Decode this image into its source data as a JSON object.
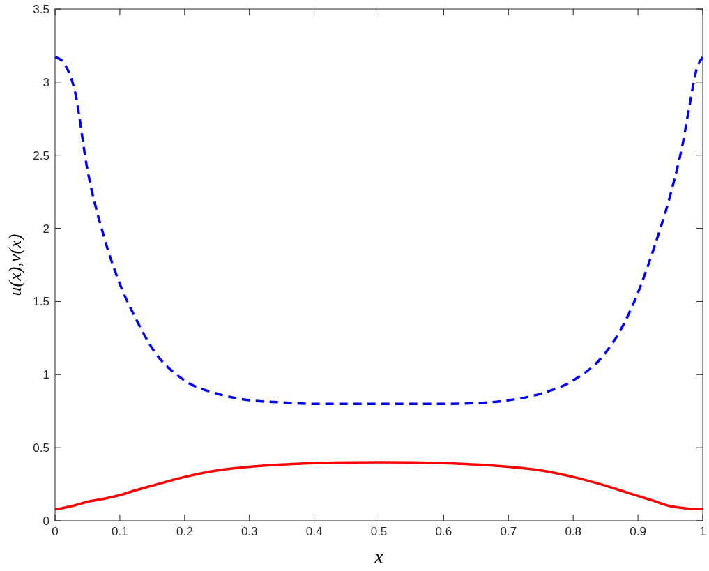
{
  "chart_data": {
    "type": "line",
    "xlabel": "x",
    "ylabel": "u(x),v(x)",
    "xlim": [
      0,
      1
    ],
    "ylim": [
      0,
      3.5
    ],
    "xticks": [
      0,
      0.1,
      0.2,
      0.3,
      0.4,
      0.5,
      0.6,
      0.7,
      0.8,
      0.9,
      1
    ],
    "yticks": [
      0,
      0.5,
      1,
      1.5,
      2,
      2.5,
      3,
      3.5
    ],
    "grid": false,
    "x": [
      0,
      0.01,
      0.02,
      0.03,
      0.05,
      0.075,
      0.1,
      0.125,
      0.15,
      0.2,
      0.25,
      0.3,
      0.35,
      0.4,
      0.5,
      0.6,
      0.65,
      0.7,
      0.75,
      0.8,
      0.85,
      0.875,
      0.9,
      0.925,
      0.95,
      0.97,
      0.98,
      0.99,
      1
    ],
    "series": [
      {
        "color": "#0000ff",
        "line_style": "dashed",
        "values": [
          3.17,
          3.15,
          3.08,
          2.95,
          2.4,
          1.95,
          1.62,
          1.38,
          1.18,
          0.96,
          0.87,
          0.825,
          0.81,
          0.8,
          0.8,
          0.8,
          0.805,
          0.825,
          0.87,
          0.96,
          1.15,
          1.32,
          1.56,
          1.87,
          2.23,
          2.6,
          2.85,
          3.08,
          3.17
        ]
      },
      {
        "color": "#ff0000",
        "line_style": "solid",
        "values": [
          0.08,
          0.085,
          0.095,
          0.105,
          0.13,
          0.15,
          0.175,
          0.21,
          0.24,
          0.3,
          0.345,
          0.37,
          0.385,
          0.395,
          0.4,
          0.395,
          0.385,
          0.37,
          0.345,
          0.3,
          0.24,
          0.205,
          0.17,
          0.135,
          0.1,
          0.087,
          0.082,
          0.08,
          0.08
        ]
      }
    ]
  }
}
